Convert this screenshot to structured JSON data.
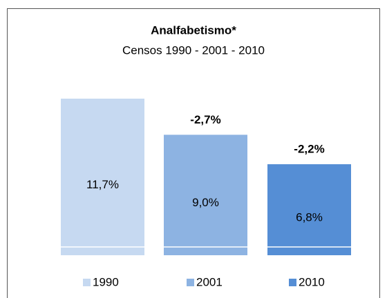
{
  "chart_data": {
    "type": "bar",
    "title": "Analfabetismo*",
    "subtitle": "Censos  1990 - 2001 - 2010",
    "categories": [
      "1990",
      "2001",
      "2010"
    ],
    "values": [
      11.7,
      9.0,
      6.8
    ],
    "value_labels": [
      "11,7%",
      "9,0%",
      "6,8%"
    ],
    "colors": [
      "#c6d9f1",
      "#8db3e2",
      "#558ed5"
    ],
    "changes": [
      null,
      -2.7,
      -2.2
    ],
    "change_labels": [
      null,
      "-2,7%",
      "-2,2%"
    ]
  }
}
